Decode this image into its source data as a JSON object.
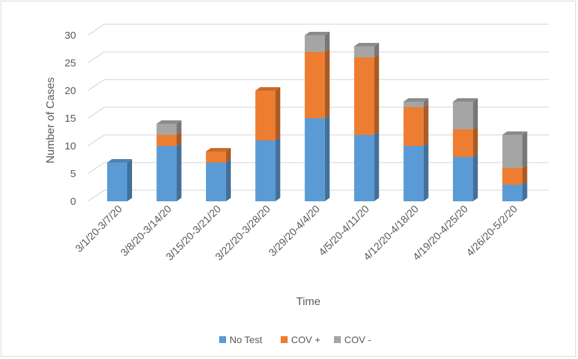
{
  "chart_data": {
    "type": "bar",
    "stacked": true,
    "style": "3d-stacked-column",
    "title": "",
    "xlabel": "Time",
    "ylabel": "Number of Cases",
    "ylim": [
      0,
      30
    ],
    "yticks": [
      0,
      5,
      10,
      15,
      20,
      25,
      30
    ],
    "grid": true,
    "legend_position": "bottom",
    "categories": [
      "3/1/20-3/7/20",
      "3/8/20-3/14/20",
      "3/15/20-3/21/20",
      "3/22/20-3/28/20",
      "3/29/20-4/4/20",
      "4/5/20-4/11/20",
      "4/12/20-4/18/20",
      "4/19/20-4/25/20",
      "4/26/20-5/2/20"
    ],
    "series": [
      {
        "name": "No Test",
        "color": "#5b9bd5",
        "values": [
          7,
          10,
          7,
          11,
          15,
          12,
          10,
          8,
          3
        ]
      },
      {
        "name": "COV +",
        "color": "#ed7d31",
        "values": [
          0,
          2,
          2,
          9,
          12,
          14,
          7,
          5,
          3
        ]
      },
      {
        "name": "COV -",
        "color": "#a5a5a5",
        "values": [
          0,
          2,
          0,
          0,
          3,
          2,
          1,
          5,
          6
        ]
      }
    ]
  }
}
